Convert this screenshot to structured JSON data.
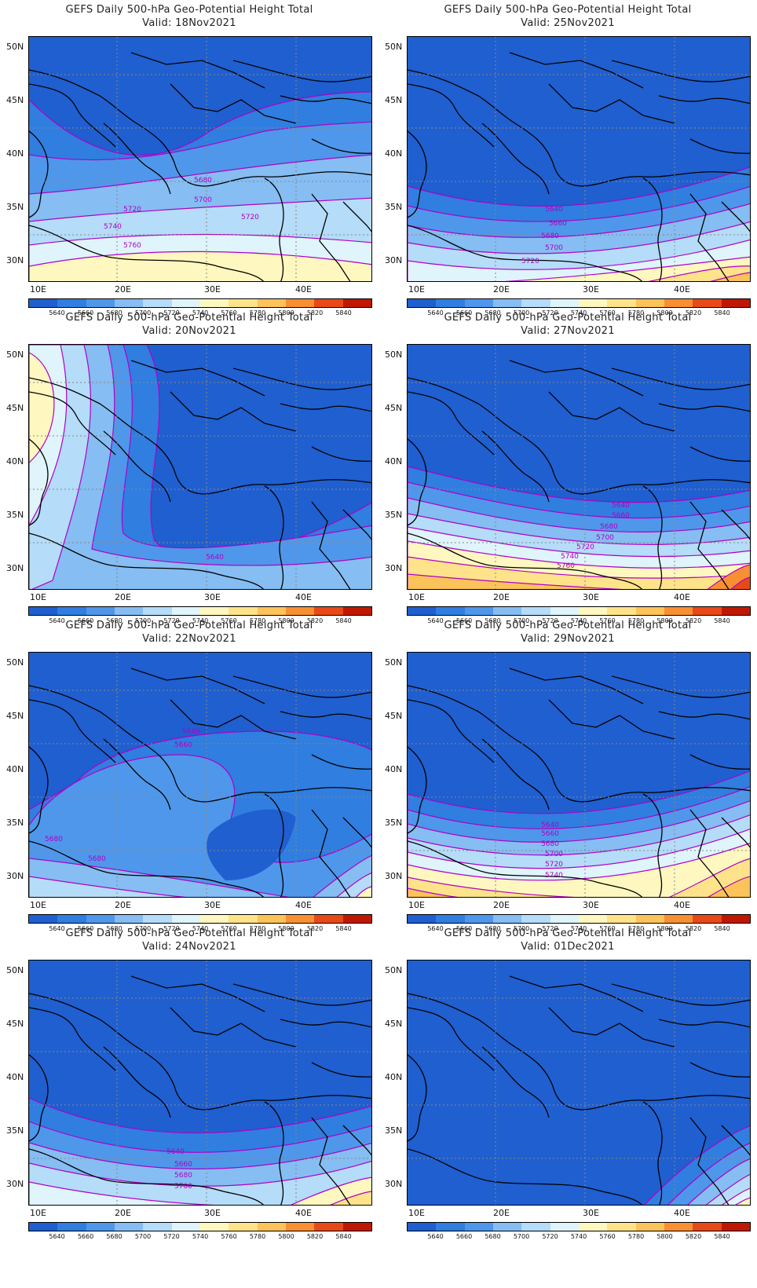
{
  "title": "GEFS Daily 500-hPa Geo-Potential Height Total",
  "valid_prefix": "Valid:",
  "lat_labels": [
    "50N",
    "45N",
    "40N",
    "35N",
    "30N"
  ],
  "lon_labels": [
    "10E",
    "20E",
    "30E",
    "40E"
  ],
  "colorbar": {
    "labels": [
      "5640",
      "5660",
      "5680",
      "5700",
      "5720",
      "5740",
      "5760",
      "5780",
      "5800",
      "5820",
      "5840"
    ],
    "colors": [
      "#1f5fd0",
      "#2f7ee0",
      "#4f97ea",
      "#86bdf2",
      "#b5dcf8",
      "#dff4fb",
      "#fff7c0",
      "#ffe38a",
      "#fcc35a",
      "#f98f33",
      "#e74a18",
      "#c01800"
    ]
  },
  "panels": [
    {
      "valid": "18Nov2021",
      "labels": [
        "5680",
        "5700",
        "5720",
        "5720",
        "5740",
        "5760"
      ]
    },
    {
      "valid": "25Nov2021",
      "labels": [
        "5640",
        "5660",
        "5680",
        "5700",
        "5720"
      ]
    },
    {
      "valid": "20Nov2021",
      "labels": [
        "5640"
      ]
    },
    {
      "valid": "27Nov2021",
      "labels": [
        "5640",
        "5660",
        "5680",
        "5700",
        "5720",
        "5740",
        "5760"
      ]
    },
    {
      "valid": "22Nov2021",
      "labels": [
        "5640",
        "5660",
        "5680",
        "5680"
      ]
    },
    {
      "valid": "29Nov2021",
      "labels": [
        "5640",
        "5660",
        "5680",
        "5700",
        "5720",
        "5740"
      ]
    },
    {
      "valid": "24Nov2021",
      "labels": [
        "5640",
        "5660",
        "5680",
        "5700"
      ]
    },
    {
      "valid": "01Dec2021",
      "labels": []
    }
  ]
}
